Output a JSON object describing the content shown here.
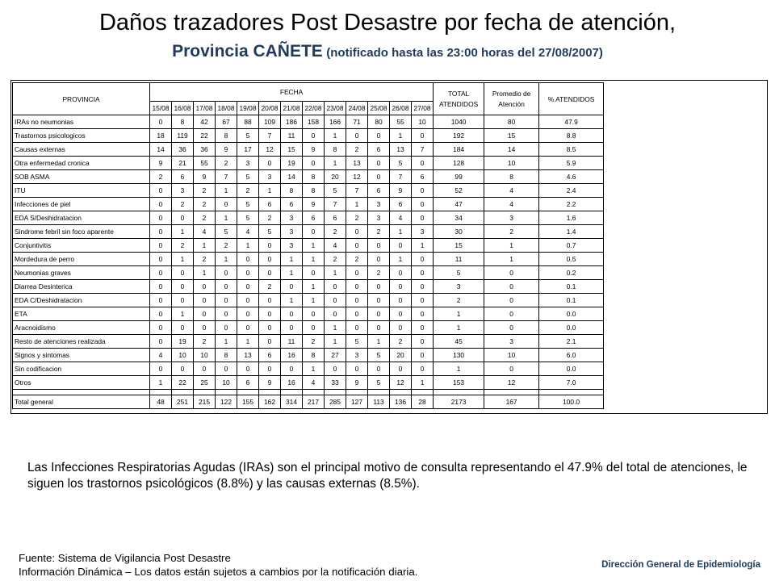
{
  "title": {
    "line1": "Daños trazadores Post Desastre por fecha de atención,",
    "line2_main": "Provincia CAÑETE",
    "line2_note": "(notificado hasta las 23:00 horas del 27/08/2007)"
  },
  "table": {
    "header_provincia": "PROVINCIA",
    "header_fecha": "FECHA",
    "header_total": "TOTAL ATENDIDOS",
    "header_promedio": "Promedio de Atención",
    "header_pct": "% ATENDIDOS",
    "dates": [
      "15/08",
      "16/08",
      "17/08",
      "18/08",
      "19/08",
      "20/08",
      "21/08",
      "22/08",
      "23/08",
      "24/08",
      "25/08",
      "26/08",
      "27/08"
    ],
    "rows": [
      {
        "label": "IRAs no neumonias",
        "values": [
          "0",
          "8",
          "42",
          "67",
          "88",
          "109",
          "186",
          "158",
          "166",
          "71",
          "80",
          "55",
          "10"
        ],
        "total": "1040",
        "prom": "80",
        "pct": "47.9"
      },
      {
        "label": "Trastornos psicologicos",
        "values": [
          "18",
          "119",
          "22",
          "8",
          "5",
          "7",
          "11",
          "0",
          "1",
          "0",
          "0",
          "1",
          "0"
        ],
        "total": "192",
        "prom": "15",
        "pct": "8.8"
      },
      {
        "label": "Causas externas",
        "values": [
          "14",
          "36",
          "36",
          "9",
          "17",
          "12",
          "15",
          "9",
          "8",
          "2",
          "6",
          "13",
          "7"
        ],
        "total": "184",
        "prom": "14",
        "pct": "8.5"
      },
      {
        "label": "Otra enfermedad cronica",
        "values": [
          "9",
          "21",
          "55",
          "2",
          "3",
          "0",
          "19",
          "0",
          "1",
          "13",
          "0",
          "5",
          "0"
        ],
        "total": "128",
        "prom": "10",
        "pct": "5.9"
      },
      {
        "label": "SOB ASMA",
        "values": [
          "2",
          "6",
          "9",
          "7",
          "5",
          "3",
          "14",
          "8",
          "20",
          "12",
          "0",
          "7",
          "6"
        ],
        "total": "99",
        "prom": "8",
        "pct": "4.6"
      },
      {
        "label": "ITU",
        "values": [
          "0",
          "3",
          "2",
          "1",
          "2",
          "1",
          "8",
          "8",
          "5",
          "7",
          "6",
          "9",
          "0"
        ],
        "total": "52",
        "prom": "4",
        "pct": "2.4"
      },
      {
        "label": "Infecciones de piel",
        "values": [
          "0",
          "2",
          "2",
          "0",
          "5",
          "6",
          "6",
          "9",
          "7",
          "1",
          "3",
          "6",
          "0"
        ],
        "total": "47",
        "prom": "4",
        "pct": "2.2"
      },
      {
        "label": "EDA S/Deshidratacion",
        "values": [
          "0",
          "0",
          "2",
          "1",
          "5",
          "2",
          "3",
          "6",
          "6",
          "2",
          "3",
          "4",
          "0"
        ],
        "total": "34",
        "prom": "3",
        "pct": "1.6"
      },
      {
        "label": "Sindrome febril sin foco aparente",
        "values": [
          "0",
          "1",
          "4",
          "5",
          "4",
          "5",
          "3",
          "0",
          "2",
          "0",
          "2",
          "1",
          "3"
        ],
        "total": "30",
        "prom": "2",
        "pct": "1.4"
      },
      {
        "label": "Conjuntivitis",
        "values": [
          "0",
          "2",
          "1",
          "2",
          "1",
          "0",
          "3",
          "1",
          "4",
          "0",
          "0",
          "0",
          "1"
        ],
        "total": "15",
        "prom": "1",
        "pct": "0.7"
      },
      {
        "label": "Mordedura de perro",
        "values": [
          "0",
          "1",
          "2",
          "1",
          "0",
          "0",
          "1",
          "1",
          "2",
          "2",
          "0",
          "1",
          "0"
        ],
        "total": "11",
        "prom": "1",
        "pct": "0.5"
      },
      {
        "label": "Neumonias graves",
        "values": [
          "0",
          "0",
          "1",
          "0",
          "0",
          "0",
          "1",
          "0",
          "1",
          "0",
          "2",
          "0",
          "0"
        ],
        "total": "5",
        "prom": "0",
        "pct": "0.2"
      },
      {
        "label": "Diarrea Desinterica",
        "values": [
          "0",
          "0",
          "0",
          "0",
          "0",
          "2",
          "0",
          "1",
          "0",
          "0",
          "0",
          "0",
          "0"
        ],
        "total": "3",
        "prom": "0",
        "pct": "0.1"
      },
      {
        "label": "EDA C/Deshidratacion",
        "values": [
          "0",
          "0",
          "0",
          "0",
          "0",
          "0",
          "1",
          "1",
          "0",
          "0",
          "0",
          "0",
          "0"
        ],
        "total": "2",
        "prom": "0",
        "pct": "0.1"
      },
      {
        "label": "ETA",
        "values": [
          "0",
          "1",
          "0",
          "0",
          "0",
          "0",
          "0",
          "0",
          "0",
          "0",
          "0",
          "0",
          "0"
        ],
        "total": "1",
        "prom": "0",
        "pct": "0.0"
      },
      {
        "label": "Aracnoidismo",
        "values": [
          "0",
          "0",
          "0",
          "0",
          "0",
          "0",
          "0",
          "0",
          "1",
          "0",
          "0",
          "0",
          "0"
        ],
        "total": "1",
        "prom": "0",
        "pct": "0.0"
      },
      {
        "label": "Resto de atenciones realizada",
        "values": [
          "0",
          "19",
          "2",
          "1",
          "1",
          "0",
          "11",
          "2",
          "1",
          "5",
          "1",
          "2",
          "0"
        ],
        "total": "45",
        "prom": "3",
        "pct": "2.1"
      },
      {
        "label": "Signos y sintomas",
        "values": [
          "4",
          "10",
          "10",
          "8",
          "13",
          "6",
          "16",
          "8",
          "27",
          "3",
          "5",
          "20",
          "0"
        ],
        "total": "130",
        "prom": "10",
        "pct": "6.0"
      },
      {
        "label": "Sin codificacion",
        "values": [
          "0",
          "0",
          "0",
          "0",
          "0",
          "0",
          "0",
          "1",
          "0",
          "0",
          "0",
          "0",
          "0"
        ],
        "total": "1",
        "prom": "0",
        "pct": "0.0"
      },
      {
        "label": "Otros",
        "values": [
          "1",
          "22",
          "25",
          "10",
          "6",
          "9",
          "16",
          "4",
          "33",
          "9",
          "5",
          "12",
          "1"
        ],
        "total": "153",
        "prom": "12",
        "pct": "7.0"
      }
    ],
    "total_row": {
      "label": "Total general",
      "values": [
        "48",
        "251",
        "215",
        "122",
        "155",
        "162",
        "314",
        "217",
        "285",
        "127",
        "113",
        "136",
        "28"
      ],
      "total": "2173",
      "prom": "167",
      "pct": "100.0"
    }
  },
  "note": "Las Infecciones Respiratorias Agudas (IRAs) son el principal motivo de consulta representando el 47.9% del total de atenciones, le siguen los trastornos psicológicos (8.8%) y las causas externas (8.5%).",
  "footer": {
    "source_line1": "Fuente: Sistema de Vigilancia Post Desastre",
    "source_line2": "Información Dinámica – Los datos están sujetos a cambios por la notificación diaria.",
    "agency": "Dirección General de Epidemiología"
  }
}
